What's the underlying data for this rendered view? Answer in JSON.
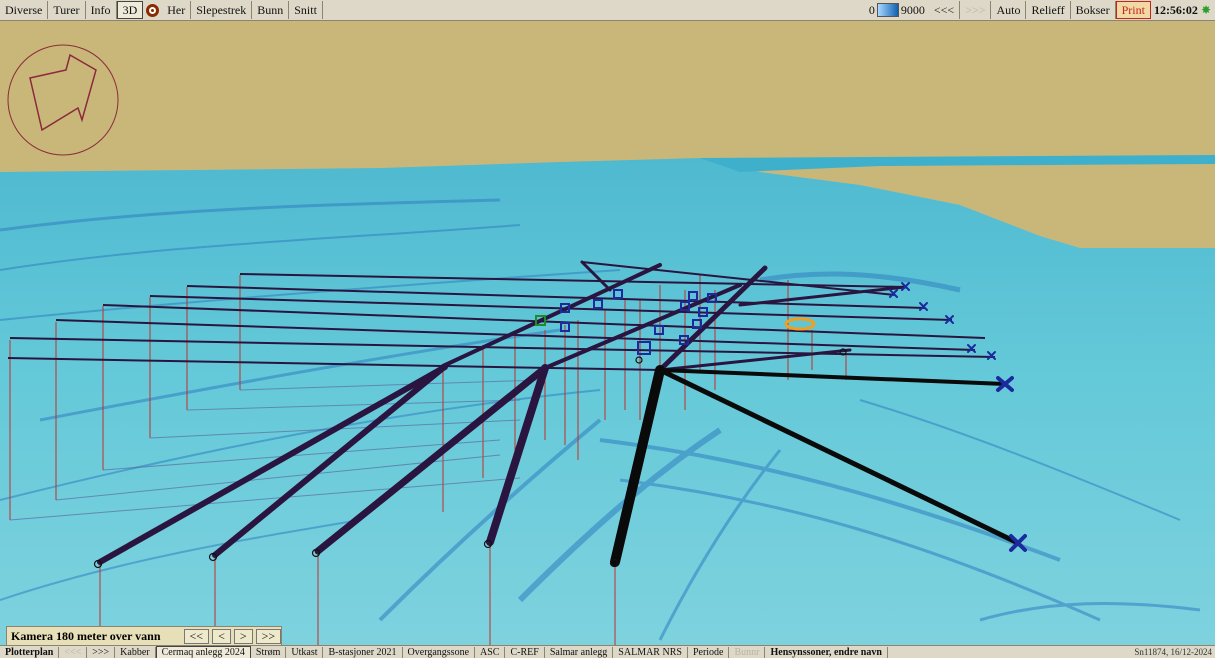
{
  "toolbar": {
    "diverse": "Diverse",
    "turer": "Turer",
    "info": "Info",
    "mode_3d": "3D",
    "her": "Her",
    "slepestrek": "Slepestrek",
    "bunn": "Bunn",
    "snitt": "Snitt",
    "scale_min": "0",
    "scale_max": "9000",
    "prev": "<<<",
    "next": ">>>",
    "auto": "Auto",
    "relieff": "Relieff",
    "bokser": "Bokser",
    "print": "Print",
    "clock": "12:56:02"
  },
  "camera": {
    "label": "Kamera 180 meter over vann",
    "btn_first": "<<",
    "btn_prev": "<",
    "btn_next": ">",
    "btn_last": ">>"
  },
  "bottombar": {
    "items": [
      "Plotterplan",
      "<<<",
      ">>>",
      "Kabber",
      "Cermaq anlegg 2024",
      "Strøm",
      "Utkast",
      "B-stasjoner 2021",
      "Overgangssone",
      "ASC",
      "C-REF",
      "Salmar anlegg",
      "SALMAR NRS",
      "Periode",
      "Bunnr",
      "Hensynssoner, endre navn"
    ],
    "status": "Sn11874, 16/12-2024"
  },
  "colors": {
    "sea": "#5cc6d4",
    "land": "#c9b77a",
    "lines": "#2a1540",
    "lines_black": "#0a0a0a",
    "markers": "#1b2b9e",
    "drop_lines": "#c0302a"
  }
}
